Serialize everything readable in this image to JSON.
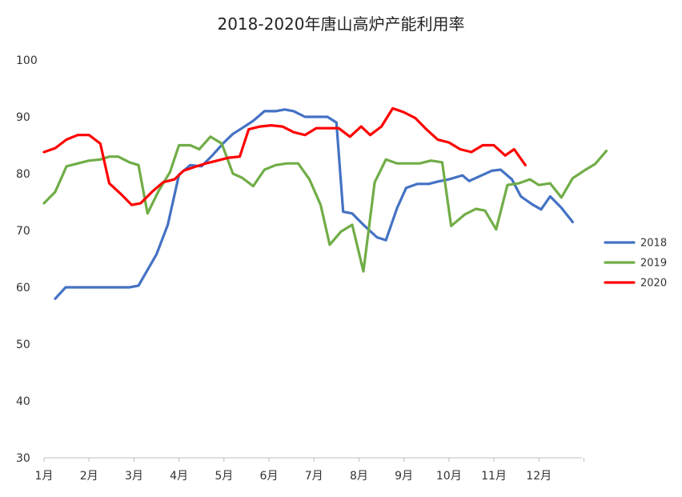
{
  "chart_data": {
    "type": "line",
    "title": "2018-2020年唐山高炉产能利用率",
    "xlabel": "",
    "ylabel": "",
    "ylim": [
      30,
      100
    ],
    "yticks": [
      30,
      40,
      50,
      60,
      70,
      80,
      90,
      100
    ],
    "xlim": [
      1,
      13
    ],
    "xticks": [
      {
        "pos": 1,
        "label": "1月"
      },
      {
        "pos": 2,
        "label": "2月"
      },
      {
        "pos": 3,
        "label": "3月"
      },
      {
        "pos": 4,
        "label": "4月"
      },
      {
        "pos": 5,
        "label": "5月"
      },
      {
        "pos": 6,
        "label": "6月"
      },
      {
        "pos": 7,
        "label": "7月"
      },
      {
        "pos": 8,
        "label": "8月"
      },
      {
        "pos": 9,
        "label": "9月"
      },
      {
        "pos": 10,
        "label": "10月"
      },
      {
        "pos": 11,
        "label": "11月"
      },
      {
        "pos": 12,
        "label": "12月"
      }
    ],
    "grid": false,
    "legend_position": "right",
    "series": [
      {
        "name": "2018",
        "color": "#4472C4",
        "points": [
          [
            1.25,
            58.0
          ],
          [
            1.48,
            60.0
          ],
          [
            1.72,
            60.0
          ],
          [
            2.0,
            60.0
          ],
          [
            2.3,
            60.0
          ],
          [
            2.6,
            60.0
          ],
          [
            2.9,
            60.0
          ],
          [
            3.1,
            60.3
          ],
          [
            3.5,
            65.8
          ],
          [
            3.75,
            71.0
          ],
          [
            4.0,
            79.8
          ],
          [
            4.25,
            81.5
          ],
          [
            4.5,
            81.3
          ],
          [
            4.75,
            83.3
          ],
          [
            5.0,
            85.5
          ],
          [
            5.2,
            87.0
          ],
          [
            5.4,
            88.0
          ],
          [
            5.65,
            89.3
          ],
          [
            5.9,
            91.0
          ],
          [
            6.15,
            91.0
          ],
          [
            6.35,
            91.3
          ],
          [
            6.55,
            91.0
          ],
          [
            6.8,
            90.0
          ],
          [
            7.0,
            90.0
          ],
          [
            7.3,
            90.0
          ],
          [
            7.5,
            89.0
          ],
          [
            7.65,
            73.3
          ],
          [
            7.85,
            73.0
          ],
          [
            8.1,
            71.0
          ],
          [
            8.4,
            68.8
          ],
          [
            8.6,
            68.3
          ],
          [
            8.85,
            74.0
          ],
          [
            9.05,
            77.5
          ],
          [
            9.3,
            78.2
          ],
          [
            9.55,
            78.2
          ],
          [
            9.75,
            78.6
          ],
          [
            10.0,
            79.0
          ],
          [
            10.3,
            79.7
          ],
          [
            10.45,
            78.7
          ],
          [
            10.7,
            79.6
          ],
          [
            10.95,
            80.5
          ],
          [
            11.15,
            80.7
          ],
          [
            11.4,
            79.0
          ],
          [
            11.6,
            76.0
          ],
          [
            11.85,
            74.6
          ],
          [
            12.05,
            73.7
          ],
          [
            12.25,
            76.0
          ],
          [
            12.5,
            74.0
          ],
          [
            12.75,
            71.5
          ]
        ]
      },
      {
        "name": "2019",
        "color": "#70AD47",
        "points": [
          [
            1.0,
            74.8
          ],
          [
            1.25,
            76.8
          ],
          [
            1.5,
            81.3
          ],
          [
            1.75,
            81.8
          ],
          [
            2.0,
            82.3
          ],
          [
            2.25,
            82.5
          ],
          [
            2.45,
            83.0
          ],
          [
            2.65,
            83.0
          ],
          [
            2.9,
            82.0
          ],
          [
            3.1,
            81.5
          ],
          [
            3.3,
            73.0
          ],
          [
            3.55,
            77.0
          ],
          [
            3.8,
            80.3
          ],
          [
            4.0,
            85.0
          ],
          [
            4.25,
            85.0
          ],
          [
            4.45,
            84.3
          ],
          [
            4.7,
            86.5
          ],
          [
            4.95,
            85.3
          ],
          [
            5.2,
            80.0
          ],
          [
            5.4,
            79.3
          ],
          [
            5.65,
            77.8
          ],
          [
            5.9,
            80.7
          ],
          [
            6.15,
            81.5
          ],
          [
            6.4,
            81.8
          ],
          [
            6.65,
            81.8
          ],
          [
            6.9,
            79.0
          ],
          [
            7.15,
            74.5
          ],
          [
            7.35,
            67.5
          ],
          [
            7.6,
            69.8
          ],
          [
            7.85,
            71.0
          ],
          [
            8.1,
            62.8
          ],
          [
            8.35,
            78.5
          ],
          [
            8.6,
            82.5
          ],
          [
            8.85,
            81.8
          ],
          [
            9.1,
            81.8
          ],
          [
            9.35,
            81.8
          ],
          [
            9.6,
            82.3
          ],
          [
            9.85,
            82.0
          ],
          [
            10.05,
            70.8
          ],
          [
            10.35,
            72.8
          ],
          [
            10.6,
            73.8
          ],
          [
            10.8,
            73.5
          ],
          [
            11.05,
            70.2
          ],
          [
            11.3,
            78.0
          ],
          [
            11.55,
            78.3
          ],
          [
            11.8,
            79.0
          ],
          [
            12.0,
            78.0
          ],
          [
            12.25,
            78.3
          ],
          [
            12.5,
            75.8
          ],
          [
            12.75,
            79.2
          ],
          [
            13.0,
            80.5
          ],
          [
            13.25,
            81.7
          ],
          [
            13.5,
            84.0
          ]
        ]
      },
      {
        "name": "2020",
        "color": "#FF0000",
        "points": [
          [
            1.0,
            83.8
          ],
          [
            1.25,
            84.5
          ],
          [
            1.5,
            86.0
          ],
          [
            1.75,
            86.8
          ],
          [
            2.0,
            86.8
          ],
          [
            2.25,
            85.3
          ],
          [
            2.45,
            78.3
          ],
          [
            2.7,
            76.5
          ],
          [
            2.95,
            74.5
          ],
          [
            3.15,
            74.8
          ],
          [
            3.4,
            76.8
          ],
          [
            3.65,
            78.5
          ],
          [
            3.9,
            79.0
          ],
          [
            4.1,
            80.5
          ],
          [
            4.35,
            81.2
          ],
          [
            4.6,
            81.8
          ],
          [
            4.85,
            82.3
          ],
          [
            5.1,
            82.8
          ],
          [
            5.35,
            83.0
          ],
          [
            5.55,
            87.8
          ],
          [
            5.8,
            88.3
          ],
          [
            6.05,
            88.5
          ],
          [
            6.3,
            88.3
          ],
          [
            6.55,
            87.3
          ],
          [
            6.8,
            86.8
          ],
          [
            7.05,
            88.0
          ],
          [
            7.3,
            88.0
          ],
          [
            7.55,
            88.0
          ],
          [
            7.8,
            86.5
          ],
          [
            8.05,
            88.3
          ],
          [
            8.25,
            86.8
          ],
          [
            8.5,
            88.3
          ],
          [
            8.75,
            91.5
          ],
          [
            9.0,
            90.8
          ],
          [
            9.25,
            89.8
          ],
          [
            9.5,
            87.8
          ],
          [
            9.75,
            86.0
          ],
          [
            10.0,
            85.5
          ],
          [
            10.25,
            84.3
          ],
          [
            10.5,
            83.8
          ],
          [
            10.75,
            85.0
          ],
          [
            11.0,
            85.0
          ],
          [
            11.25,
            83.2
          ],
          [
            11.45,
            84.3
          ],
          [
            11.7,
            81.5
          ]
        ]
      }
    ]
  }
}
